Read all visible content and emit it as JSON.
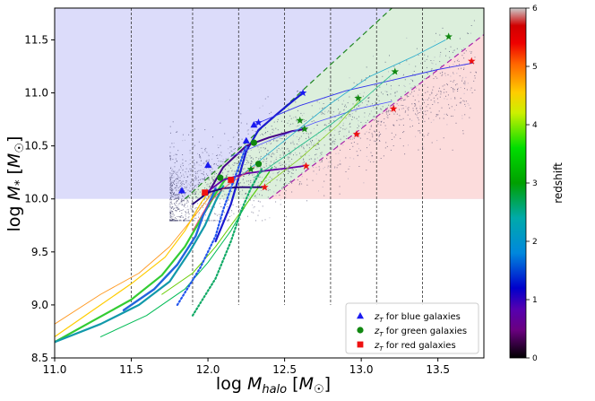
{
  "chart_data": {
    "type": "scatter",
    "xlabel": "log M_halo [M☉]",
    "xlabel_main": "log ",
    "xlabel_mvar": "M",
    "xlabel_sub": "halo",
    "xlabel_unit_open": " [",
    "xlabel_unit_m": "M",
    "xlabel_unit_sub": "☉",
    "xlabel_unit_close": "]",
    "ylabel": "log M* [M☉]",
    "ylabel_main": "log ",
    "ylabel_mvar": "M",
    "ylabel_sub": "*",
    "ylabel_unit_open": " [",
    "ylabel_unit_m": "M",
    "ylabel_unit_sub": "☉",
    "ylabel_unit_close": "]",
    "xlim": [
      11.0,
      13.8
    ],
    "ylim": [
      8.5,
      11.8
    ],
    "xticks": [
      "11.0",
      "11.5",
      "12.0",
      "12.5",
      "13.0",
      "13.5"
    ],
    "yticks": [
      "8.5",
      "9.0",
      "9.5",
      "10.0",
      "10.5",
      "11.0",
      "11.5"
    ],
    "colorbar": {
      "label": "redshift",
      "range": [
        0,
        6
      ],
      "ticks": [
        "0",
        "1",
        "2",
        "3",
        "4",
        "5",
        "6"
      ],
      "colormap": "nipy_spectral"
    },
    "regions": [
      {
        "name": "blue",
        "color": "#dcdcfa"
      },
      {
        "name": "green",
        "color": "#dcefdc"
      },
      {
        "name": "red",
        "color": "#fcdcdc"
      }
    ],
    "region_boundaries": {
      "y_floor": 10.0,
      "green_lower": {
        "x": [
          12.4,
          13.8
        ],
        "y": [
          10.0,
          11.55
        ]
      },
      "blue_green": {
        "x": [
          11.85,
          13.2
        ],
        "y": [
          10.0,
          11.8
        ]
      }
    },
    "vertical_lines_x": [
      11.5,
      11.9,
      12.2,
      12.5,
      12.8,
      13.1,
      13.4
    ],
    "legend": {
      "position": "lower right",
      "items": [
        {
          "marker": "triangle",
          "color": "#1a1af0",
          "label_sym": "z",
          "label_sub": "T",
          "label_text": " for blue galaxies"
        },
        {
          "marker": "circle",
          "color": "#118811",
          "label_sym": "z",
          "label_sub": "T",
          "label_text": " for green galaxies"
        },
        {
          "marker": "square",
          "color": "#ee1111",
          "label_sym": "z",
          "label_sub": "T",
          "label_text": " for red galaxies"
        }
      ]
    },
    "transition_markers": [
      {
        "kind": "triangle",
        "color": "#1a1af0",
        "x": 11.83,
        "y": 10.08
      },
      {
        "kind": "triangle",
        "color": "#1a1af0",
        "x": 12.0,
        "y": 10.32
      },
      {
        "kind": "triangle",
        "color": "#1a1af0",
        "x": 12.25,
        "y": 10.55
      },
      {
        "kind": "triangle",
        "color": "#1a1af0",
        "x": 12.3,
        "y": 10.7
      },
      {
        "kind": "circle",
        "color": "#118811",
        "x": 12.08,
        "y": 10.2
      },
      {
        "kind": "circle",
        "color": "#118811",
        "x": 12.3,
        "y": 10.53
      },
      {
        "kind": "circle",
        "color": "#118811",
        "x": 12.33,
        "y": 10.33
      },
      {
        "kind": "square",
        "color": "#ee1111",
        "x": 11.98,
        "y": 10.06
      },
      {
        "kind": "square",
        "color": "#ee1111",
        "x": 12.15,
        "y": 10.18
      },
      {
        "kind": "star",
        "color": "#1a1af0",
        "x": 12.62,
        "y": 11.0
      },
      {
        "kind": "star",
        "color": "#1a1af0",
        "x": 12.33,
        "y": 10.72
      },
      {
        "kind": "star",
        "color": "#118811",
        "x": 12.63,
        "y": 10.66
      },
      {
        "kind": "star",
        "color": "#118811",
        "x": 12.6,
        "y": 10.74
      },
      {
        "kind": "star",
        "color": "#118811",
        "x": 12.98,
        "y": 10.95
      },
      {
        "kind": "star",
        "color": "#118811",
        "x": 13.22,
        "y": 11.2
      },
      {
        "kind": "star",
        "color": "#118811",
        "x": 13.57,
        "y": 11.53
      },
      {
        "kind": "star",
        "color": "#118811",
        "x": 12.28,
        "y": 10.28
      },
      {
        "kind": "star",
        "color": "#ee1111",
        "x": 12.64,
        "y": 10.31
      },
      {
        "kind": "star",
        "color": "#ee1111",
        "x": 12.37,
        "y": 10.11
      },
      {
        "kind": "star",
        "color": "#ee1111",
        "x": 12.97,
        "y": 10.61
      },
      {
        "kind": "star",
        "color": "#ee1111",
        "x": 13.21,
        "y": 10.85
      },
      {
        "kind": "star",
        "color": "#ee1111",
        "x": 13.72,
        "y": 11.3
      }
    ],
    "tracks": [
      {
        "color": "#ff9922",
        "width": 0.9,
        "x": [
          11.0,
          11.3,
          11.55,
          11.75,
          11.88,
          12.0,
          12.05
        ],
        "y": [
          8.82,
          9.1,
          9.3,
          9.55,
          9.78,
          10.0,
          10.1
        ]
      },
      {
        "color": "#ffcc00",
        "width": 1.2,
        "x": [
          11.0,
          11.25,
          11.5,
          11.72,
          11.85,
          11.95,
          12.02
        ],
        "y": [
          8.7,
          8.95,
          9.2,
          9.45,
          9.7,
          9.95,
          10.1
        ]
      },
      {
        "color": "#33cc33",
        "width": 2.2,
        "x": [
          11.0,
          11.25,
          11.5,
          11.7,
          11.85,
          11.95,
          12.05,
          12.12
        ],
        "y": [
          8.65,
          8.85,
          9.05,
          9.28,
          9.55,
          9.8,
          10.05,
          10.2
        ]
      },
      {
        "color": "#1199aa",
        "width": 2.2,
        "x": [
          11.0,
          11.3,
          11.55,
          11.75,
          11.88,
          11.98,
          12.05,
          12.1
        ],
        "y": [
          8.65,
          8.82,
          9.0,
          9.22,
          9.5,
          9.75,
          9.98,
          10.12
        ]
      },
      {
        "color": "#2266dd",
        "width": 2.4,
        "x": [
          11.45,
          11.65,
          11.8,
          11.92,
          11.97,
          12.02,
          12.05
        ],
        "y": [
          8.95,
          9.15,
          9.38,
          9.65,
          9.85,
          10.0,
          10.1
        ]
      },
      {
        "color": "#00bb55",
        "width": 1.0,
        "x": [
          11.3,
          11.6,
          11.85,
          12.0,
          12.15,
          12.25,
          12.35,
          12.42
        ],
        "y": [
          8.7,
          8.9,
          9.15,
          9.4,
          9.7,
          9.95,
          10.15,
          10.3
        ]
      },
      {
        "color": "#66cc00",
        "width": 1.0,
        "x": [
          11.7,
          11.9,
          12.05,
          12.2,
          12.3,
          12.4
        ],
        "y": [
          9.1,
          9.3,
          9.55,
          9.85,
          10.05,
          10.25
        ]
      },
      {
        "color": "#1a1ad0",
        "width": 2.2,
        "x": [
          12.05,
          12.15,
          12.2,
          12.25,
          12.33,
          12.45,
          12.55,
          12.62
        ],
        "y": [
          9.6,
          9.95,
          10.2,
          10.45,
          10.65,
          10.8,
          10.92,
          11.0
        ]
      },
      {
        "color": "#440088",
        "width": 2.0,
        "x": [
          12.0,
          12.1,
          12.25,
          12.4,
          12.55,
          12.64
        ],
        "y": [
          10.05,
          10.3,
          10.5,
          10.58,
          10.64,
          10.66
        ]
      },
      {
        "color": "#6600aa",
        "width": 1.8,
        "x": [
          11.98,
          12.1,
          12.25,
          12.4,
          12.52,
          12.62
        ],
        "y": [
          10.05,
          10.18,
          10.24,
          10.27,
          10.29,
          10.31
        ]
      },
      {
        "color": "#220077",
        "width": 1.8,
        "x": [
          11.9,
          12.0,
          12.1,
          12.2,
          12.3,
          12.37
        ],
        "y": [
          9.95,
          10.06,
          10.1,
          10.11,
          10.11,
          10.11
        ]
      },
      {
        "color": "#3333ee",
        "width": 0.9,
        "x": [
          12.3,
          12.6,
          12.9,
          13.2,
          13.5,
          13.72
        ],
        "y": [
          10.7,
          10.88,
          11.02,
          11.12,
          11.22,
          11.28
        ]
      },
      {
        "color": "#5555ff",
        "width": 0.8,
        "x": [
          12.15,
          12.4,
          12.7,
          12.98,
          13.2
        ],
        "y": [
          10.4,
          10.55,
          10.72,
          10.85,
          10.92
        ]
      },
      {
        "color": "#22aacc",
        "width": 0.8,
        "x": [
          12.2,
          12.5,
          12.8,
          13.05,
          13.35,
          13.55
        ],
        "y": [
          10.2,
          10.55,
          10.9,
          11.15,
          11.35,
          11.5
        ]
      },
      {
        "color": "#22bb88",
        "width": 0.8,
        "x": [
          12.3,
          12.55,
          12.8,
          13.0,
          13.22
        ],
        "y": [
          10.2,
          10.45,
          10.7,
          10.92,
          11.2
        ]
      },
      {
        "color": "#88cc22",
        "width": 0.8,
        "x": [
          12.35,
          12.6,
          12.85,
          13.0
        ],
        "y": [
          10.1,
          10.38,
          10.7,
          10.95
        ]
      },
      {
        "color": "#ff3355",
        "width": 0.7,
        "x": [
          11.9,
          12.0,
          12.1,
          12.2,
          12.3
        ],
        "y": [
          9.7,
          9.95,
          10.1,
          10.2,
          10.3
        ]
      }
    ],
    "dotted_tracks": [
      {
        "color": "#2255ee",
        "x": [
          11.8,
          11.95,
          12.05,
          12.1,
          12.15,
          12.2,
          12.25
        ],
        "y": [
          9.0,
          9.35,
          9.65,
          9.9,
          10.1,
          10.3,
          10.5
        ]
      },
      {
        "color": "#11aa66",
        "x": [
          11.9,
          12.05,
          12.15,
          12.22,
          12.28,
          12.35
        ],
        "y": [
          8.9,
          9.25,
          9.6,
          9.9,
          10.1,
          10.28
        ]
      }
    ]
  }
}
